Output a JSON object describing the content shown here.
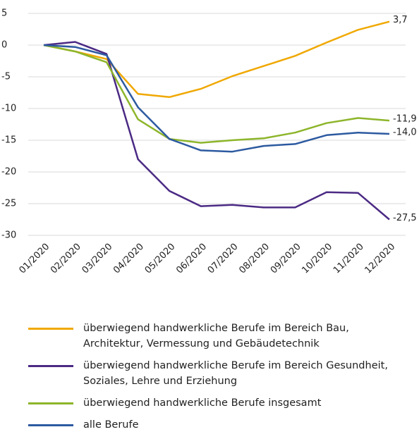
{
  "chart_data": {
    "type": "line",
    "categories": [
      "01/2020",
      "02/2020",
      "03/2020",
      "04/2020",
      "05/2020",
      "06/2020",
      "07/2020",
      "08/2020",
      "09/2020",
      "10/2020",
      "11/2020",
      "12/2020"
    ],
    "ylim": [
      -30,
      5
    ],
    "yticks": [
      -30,
      -25,
      -20,
      -15,
      -10,
      -5,
      0,
      5
    ],
    "grid": true,
    "series": [
      {
        "name": "überwiegend handwerkliche Berufe im Bereich Bau, Architektur, Vermessung und Gebäudetechnik",
        "color": "#f0a800",
        "values": [
          0,
          -1,
          -2.2,
          -7.7,
          -8.2,
          -6.9,
          -4.9,
          -3.3,
          -1.7,
          0.4,
          2.4,
          3.7
        ],
        "value_labels": [
          null,
          null,
          null,
          null,
          null,
          null,
          null,
          null,
          null,
          null,
          null,
          "3,7"
        ]
      },
      {
        "name": "überwiegend handwerkliche Berufe im Bereich Gesundheit, Soziales, Lehre und Erziehung",
        "color": "#4b2a84",
        "values": [
          0,
          0.5,
          -1.4,
          -18,
          -23,
          -25.4,
          -25.2,
          -25.6,
          -25.6,
          -23.2,
          -23.3,
          -27.5
        ],
        "value_labels": [
          null,
          null,
          null,
          null,
          null,
          null,
          null,
          null,
          null,
          null,
          null,
          "-27,5"
        ]
      },
      {
        "name": "überwiegend handwerkliche Berufe insgesamt",
        "color": "#8db52a",
        "values": [
          0,
          -1,
          -2.7,
          -11.7,
          -14.8,
          -15.4,
          -15.0,
          -14.7,
          -13.8,
          -12.3,
          -11.5,
          -11.9
        ],
        "value_labels": [
          null,
          null,
          null,
          null,
          null,
          null,
          null,
          null,
          null,
          null,
          null,
          "-11,9"
        ]
      },
      {
        "name": "alle Berufe",
        "color": "#2d5aa0",
        "values": [
          0,
          -0.3,
          -1.6,
          -9.8,
          -14.8,
          -16.6,
          -16.8,
          -15.9,
          -15.6,
          -14.2,
          -13.8,
          -14.0
        ],
        "value_labels": [
          null,
          null,
          null,
          null,
          null,
          null,
          null,
          null,
          null,
          null,
          null,
          "-14,0"
        ]
      }
    ]
  }
}
